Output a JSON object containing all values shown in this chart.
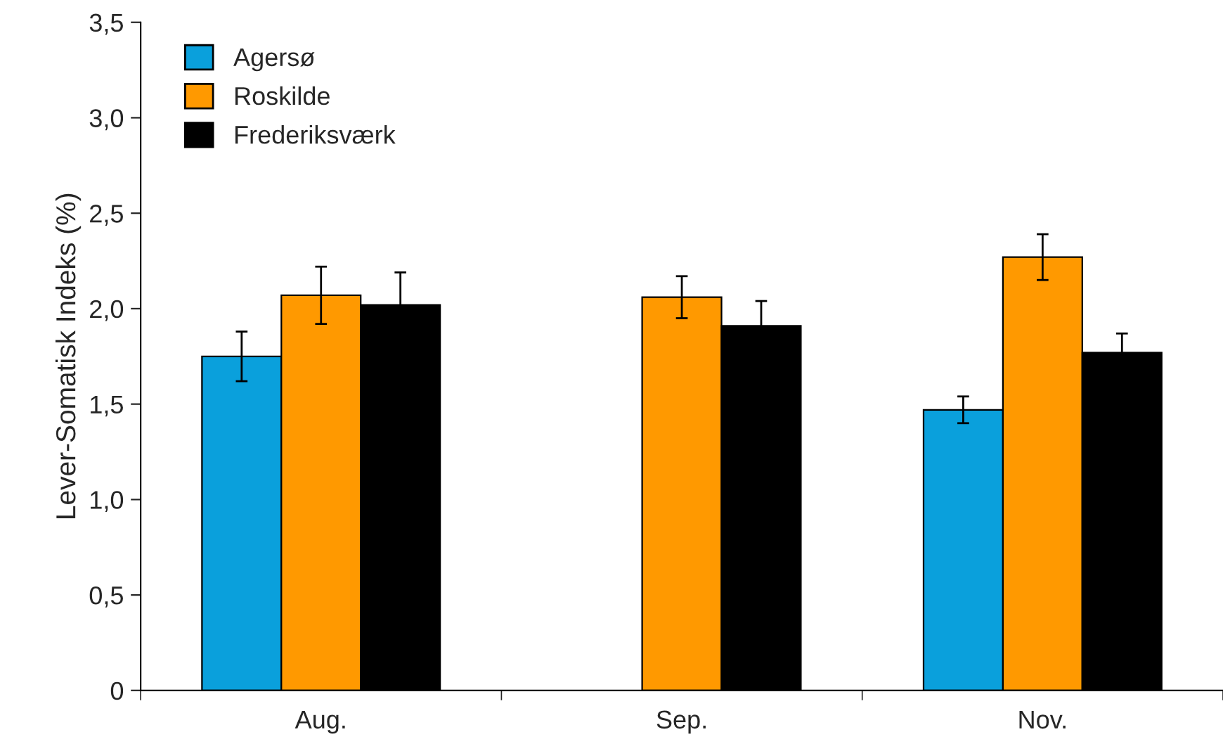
{
  "chart_data": {
    "type": "bar",
    "ylabel": "Lever-Somatisk Indeks (%)",
    "categories": [
      "Aug.",
      "Sep.",
      "Nov."
    ],
    "series": [
      {
        "name": "Agersø",
        "color": "#0aa0dc",
        "values": [
          1.75,
          null,
          1.47
        ],
        "errors": [
          0.13,
          null,
          0.07
        ]
      },
      {
        "name": "Roskilde",
        "color": "#ff9900",
        "values": [
          2.07,
          2.06,
          2.27
        ],
        "errors": [
          0.15,
          0.11,
          0.12
        ]
      },
      {
        "name": "Frederiksværk",
        "color": "#000000",
        "values": [
          2.02,
          1.91,
          1.77
        ],
        "errors": [
          0.17,
          0.13,
          0.1
        ]
      }
    ],
    "ylim": [
      0,
      3.5
    ],
    "yticks": [
      0,
      {
        "value": 0.5,
        "label": "0,5"
      },
      {
        "value": 1.0,
        "label": "1,0"
      },
      {
        "value": 1.5,
        "label": "1,5"
      },
      {
        "value": 2.0,
        "label": "2,0"
      },
      {
        "value": 2.5,
        "label": "2,5"
      },
      {
        "value": 3.0,
        "label": "3,0"
      },
      {
        "value": 3.5,
        "label": "3,5"
      }
    ],
    "grid": false,
    "legend": "top left"
  }
}
